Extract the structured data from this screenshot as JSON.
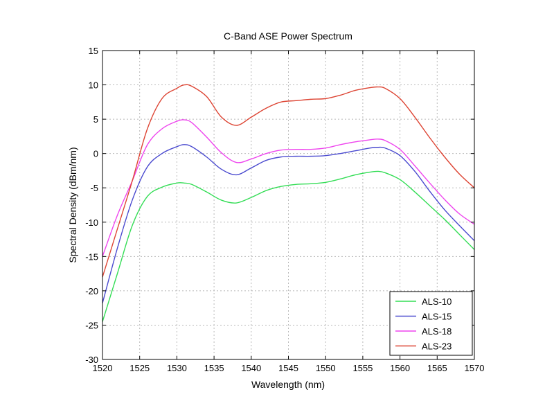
{
  "chart_data": {
    "type": "line",
    "title": "C-Band ASE Power Spectrum",
    "xlabel": "Wavelength (nm)",
    "ylabel": "Spectral Density (dBm/nm)",
    "xlim": [
      1520,
      1570
    ],
    "ylim": [
      -30,
      15
    ],
    "xticks": [
      1520,
      1525,
      1530,
      1535,
      1540,
      1545,
      1550,
      1555,
      1560,
      1565,
      1570
    ],
    "yticks": [
      -30,
      -25,
      -20,
      -15,
      -10,
      -5,
      0,
      5,
      10,
      15
    ],
    "grid": true,
    "legend_position": "bottom-right",
    "x": [
      1520,
      1522,
      1524,
      1526,
      1528,
      1530,
      1531,
      1532,
      1534,
      1536,
      1538,
      1540,
      1542,
      1544,
      1546,
      1548,
      1550,
      1552,
      1554,
      1556,
      1557,
      1558,
      1560,
      1562,
      1564,
      1566,
      1568,
      1570
    ],
    "series": [
      {
        "name": "ALS-10",
        "color": "#33dd55",
        "values": [
          -24.5,
          -17.5,
          -10.5,
          -6.3,
          -4.9,
          -4.3,
          -4.3,
          -4.5,
          -5.6,
          -6.8,
          -7.2,
          -6.4,
          -5.4,
          -4.8,
          -4.5,
          -4.4,
          -4.2,
          -3.7,
          -3.1,
          -2.7,
          -2.6,
          -2.8,
          -3.8,
          -5.6,
          -7.6,
          -9.6,
          -11.8,
          -14.0
        ]
      },
      {
        "name": "ALS-15",
        "color": "#4a4acf",
        "values": [
          -21.8,
          -13.8,
          -6.8,
          -2.0,
          0.0,
          1.0,
          1.3,
          1.0,
          -0.5,
          -2.3,
          -3.1,
          -2.1,
          -1.0,
          -0.5,
          -0.4,
          -0.4,
          -0.3,
          0.0,
          0.4,
          0.8,
          0.9,
          0.8,
          -0.3,
          -2.6,
          -5.5,
          -8.2,
          -10.5,
          -12.7
        ]
      },
      {
        "name": "ALS-18",
        "color": "#ee44ee",
        "values": [
          -15.0,
          -9.0,
          -4.0,
          1.2,
          3.6,
          4.7,
          4.9,
          4.5,
          2.4,
          0.1,
          -1.3,
          -0.8,
          0.0,
          0.5,
          0.6,
          0.6,
          0.8,
          1.3,
          1.7,
          2.0,
          2.1,
          1.9,
          0.6,
          -1.8,
          -4.3,
          -6.7,
          -8.8,
          -10.3
        ]
      },
      {
        "name": "ALS-23",
        "color": "#dd4433",
        "values": [
          -18.0,
          -11.0,
          -4.0,
          3.5,
          8.0,
          9.5,
          10.0,
          9.8,
          8.3,
          5.3,
          4.1,
          5.3,
          6.6,
          7.5,
          7.7,
          7.9,
          8.0,
          8.5,
          9.2,
          9.6,
          9.7,
          9.5,
          8.0,
          5.3,
          2.3,
          -0.5,
          -3.0,
          -5.0
        ]
      }
    ]
  }
}
